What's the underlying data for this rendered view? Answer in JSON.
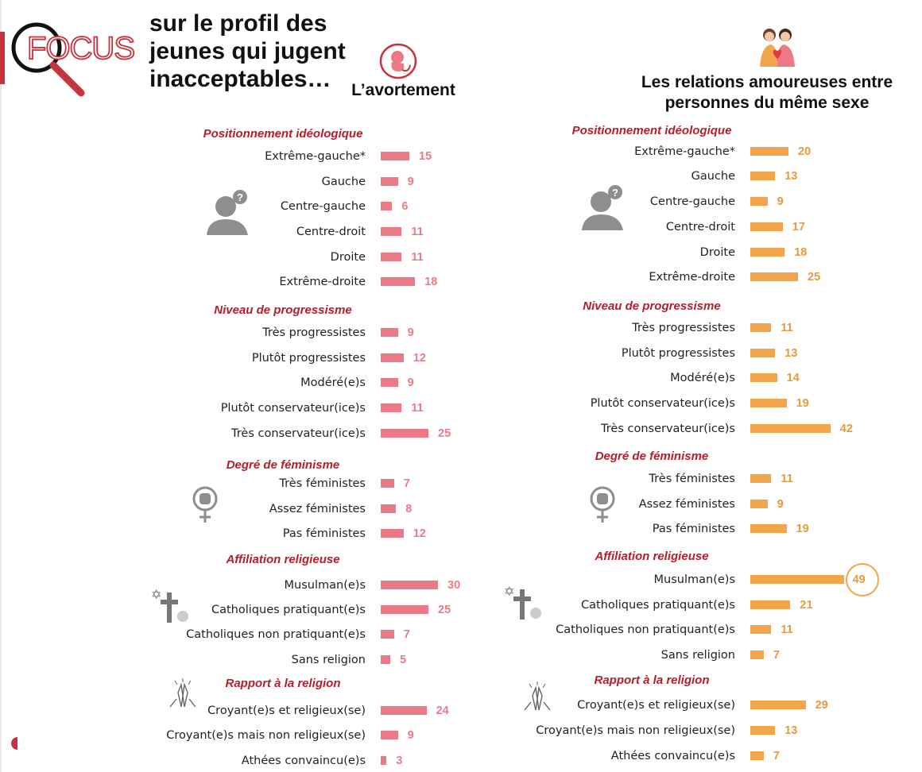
{
  "header": {
    "focus_logo_text": "FOCUS",
    "title_lines": [
      "sur le profil des",
      "jeunes qui jugent",
      "inacceptables…"
    ]
  },
  "colors": {
    "left_bar": "#ec7a86",
    "right_bar": "#f2a54a",
    "section_heading": "#b41e2a"
  },
  "chart_data": [
    {
      "type": "bar",
      "orientation": "horizontal",
      "title": "L’avortement",
      "unit": "%",
      "groups": [
        {
          "heading": "Positionnement idéologique",
          "categories": [
            "Extrême-gauche*",
            "Gauche",
            "Centre-gauche",
            "Centre-droit",
            "Droite",
            "Extrême-droite"
          ],
          "values": [
            15,
            9,
            6,
            11,
            11,
            18
          ]
        },
        {
          "heading": "Niveau de progressisme",
          "categories": [
            "Très progressistes",
            "Plutôt progressistes",
            "Modéré(e)s",
            "Plutôt conservateur(ice)s",
            "Très conservateur(ice)s"
          ],
          "values": [
            9,
            12,
            9,
            11,
            25
          ]
        },
        {
          "heading": "Degré de féminisme",
          "categories": [
            "Très féministes",
            "Assez féministes",
            "Pas féministes"
          ],
          "values": [
            7,
            8,
            12
          ]
        },
        {
          "heading": "Affiliation religieuse",
          "categories": [
            "Musulman(e)s",
            "Catholiques pratiquant(e)s",
            "Catholiques non pratiquant(e)s",
            "Sans religion"
          ],
          "values": [
            30,
            25,
            7,
            5
          ]
        },
        {
          "heading": "Rapport à la religion",
          "categories": [
            "Croyant(e)s et religieux(se)",
            "Croyant(e)s mais non religieux(se)",
            "Athées convaincu(e)s"
          ],
          "values": [
            24,
            9,
            3
          ]
        }
      ]
    },
    {
      "type": "bar",
      "orientation": "horizontal",
      "title": "Les relations amoureuses entre personnes du même sexe",
      "unit": "%",
      "highlight": "Musulman(e)s",
      "groups": [
        {
          "heading": "Positionnement idéologique",
          "categories": [
            "Extrême-gauche*",
            "Gauche",
            "Centre-gauche",
            "Centre-droit",
            "Droite",
            "Extrême-droite"
          ],
          "values": [
            20,
            13,
            9,
            17,
            18,
            25
          ]
        },
        {
          "heading": "Niveau de progressisme",
          "categories": [
            "Très progressistes",
            "Plutôt progressistes",
            "Modéré(e)s",
            "Plutôt conservateur(ice)s",
            "Très conservateur(ice)s"
          ],
          "values": [
            11,
            13,
            14,
            19,
            42
          ]
        },
        {
          "heading": "Degré de féminisme",
          "categories": [
            "Très féministes",
            "Assez féministes",
            "Pas féministes"
          ],
          "values": [
            11,
            9,
            19
          ]
        },
        {
          "heading": "Affiliation religieuse",
          "categories": [
            "Musulman(e)s",
            "Catholiques pratiquant(e)s",
            "Catholiques non pratiquant(e)s",
            "Sans religion"
          ],
          "values": [
            49,
            21,
            11,
            7
          ]
        },
        {
          "heading": "Rapport à la religion",
          "categories": [
            "Croyant(e)s et religieux(se)",
            "Croyant(e)s mais non religieux(se)",
            "Athées convaincu(e)s"
          ],
          "values": [
            29,
            13,
            7
          ]
        }
      ]
    }
  ]
}
